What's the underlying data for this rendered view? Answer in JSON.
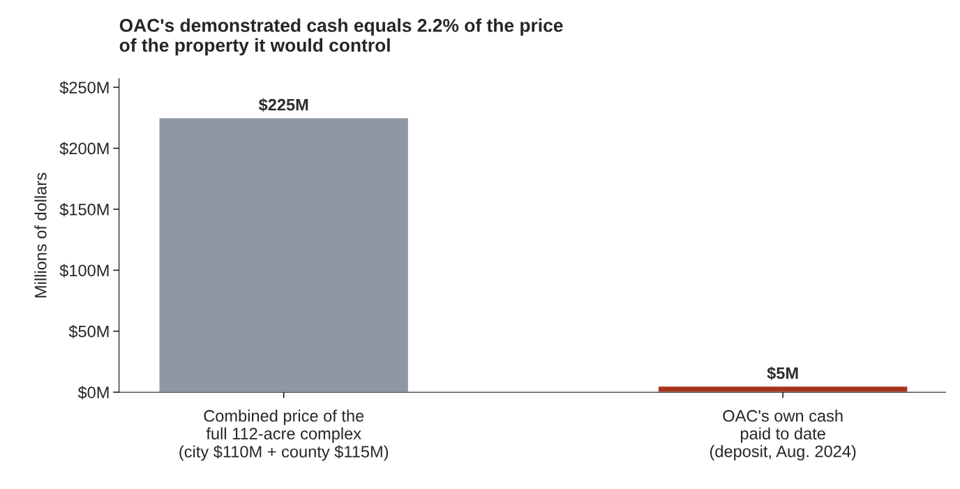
{
  "chart_data": {
    "type": "bar",
    "title": "OAC's demonstrated cash equals 2.2% of the price\nof the property it would control",
    "ylabel": "Millions of dollars",
    "categories": [
      "Combined price of the\nfull 112-acre complex\n(city $110M + county $115M)",
      "OAC's own cash\npaid to date\n(deposit, Aug. 2024)"
    ],
    "values": [
      225,
      5
    ],
    "colors": [
      "#8f97a4",
      "#a8321c"
    ],
    "value_labels": [
      "$225M",
      "$5M"
    ],
    "ylim": [
      0,
      257
    ],
    "yticks": [
      {
        "value": 0,
        "label": "$0M"
      },
      {
        "value": 50,
        "label": "$50M"
      },
      {
        "value": 100,
        "label": "$100M"
      },
      {
        "value": 150,
        "label": "$150M"
      },
      {
        "value": 200,
        "label": "$200M"
      },
      {
        "value": 250,
        "label": "$250M"
      }
    ],
    "grid": false,
    "legend": false
  }
}
